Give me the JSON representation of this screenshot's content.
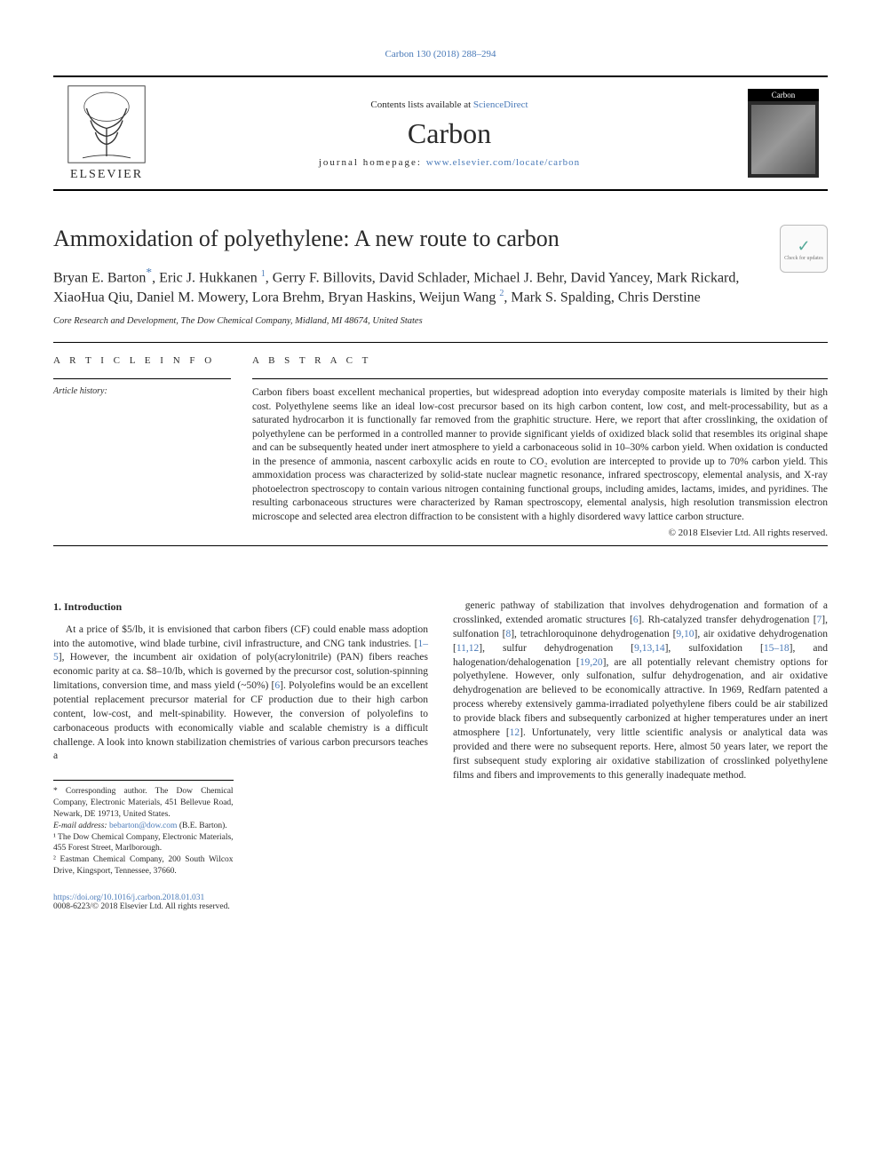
{
  "top_citation": "Carbon 130 (2018) 288–294",
  "masthead": {
    "contents_prefix": "Contents lists available at ",
    "contents_link": "ScienceDirect",
    "journal": "Carbon",
    "homepage_prefix": "journal homepage: ",
    "homepage_link": "www.elsevier.com/locate/carbon",
    "publisher": "ELSEVIER",
    "cover_brand": "Carbon"
  },
  "check_badge": {
    "check": "✓",
    "label": "Check for updates"
  },
  "article": {
    "title": "Ammoxidation of polyethylene: A new route to carbon",
    "authors_html": "Bryan E. Barton<sup class='ast'>*</sup>, Eric J. Hukkanen <sup class='sup'>1</sup>, Gerry F. Billovits, David Schlader, Michael J. Behr, David Yancey, Mark Rickard, XiaoHua Qiu, Daniel M. Mowery, Lora Brehm, Bryan Haskins, Weijun Wang <sup class='sup'>2</sup>, Mark S. Spalding, Chris Derstine",
    "affiliation": "Core Research and Development, The Dow Chemical Company, Midland, MI 48674, United States"
  },
  "info": {
    "heading": "A R T I C L E   I N F O",
    "history_label": "Article history:"
  },
  "abstract": {
    "heading": "A B S T R A C T",
    "text": "Carbon fibers boast excellent mechanical properties, but widespread adoption into everyday composite materials is limited by their high cost. Polyethylene seems like an ideal low-cost precursor based on its high carbon content, low cost, and melt-processability, but as a saturated hydrocarbon it is functionally far removed from the graphitic structure. Here, we report that after crosslinking, the oxidation of polyethylene can be performed in a controlled manner to provide significant yields of oxidized black solid that resembles its original shape and can be subsequently heated under inert atmosphere to yield a carbonaceous solid in 10–30% carbon yield. When oxidation is conducted in the presence of ammonia, nascent carboxylic acids en route to CO₂ evolution are intercepted to provide up to 70% carbon yield. This ammoxidation process was characterized by solid-state nuclear magnetic resonance, infrared spectroscopy, elemental analysis, and X-ray photoelectron spectroscopy to contain various nitrogen containing functional groups, including amides, lactams, imides, and pyridines. The resulting carbonaceous structures were characterized by Raman spectroscopy, elemental analysis, high resolution transmission electron microscope and selected area electron diffraction to be consistent with a highly disordered wavy lattice carbon structure.",
    "copyright": "© 2018 Elsevier Ltd. All rights reserved."
  },
  "intro": {
    "heading": "1.  Introduction",
    "col1_p1": "At a price of $5/lb, it is envisioned that carbon fibers (CF) could enable mass adoption into the automotive, wind blade turbine, civil infrastructure, and CNG tank industries. [1–5], However, the incumbent air oxidation of poly(acrylonitrile) (PAN) fibers reaches economic parity at ca. $8–10/lb, which is governed by the precursor cost, solution-spinning limitations, conversion time, and mass yield (~50%) [6]. Polyolefins would be an excellent potential replacement precursor material for CF production due to their high carbon content, low-cost, and melt-spinability. However, the conversion of polyolefins to carbonaceous products with economically viable and scalable chemistry is a difficult challenge. A look into known stabilization chemistries of various carbon precursors teaches a",
    "col2_p1": "generic pathway of stabilization that involves dehydrogenation and formation of a crosslinked, extended aromatic structures [6]. Rh-catalyzed transfer dehydrogenation [7], sulfonation [8], tetrachloroquinone dehydrogenation [9,10], air oxidative dehydrogenation [11,12], sulfur dehydrogenation [9,13,14], sulfoxidation [15–18], and halogenation/dehalogenation [19,20], are all potentially relevant chemistry options for polyethylene. However, only sulfonation, sulfur dehydrogenation, and air oxidative dehydrogenation are believed to be economically attractive. In 1969, Redfarn patented a process whereby extensively gamma-irradiated polyethylene fibers could be air stabilized to provide black fibers and subsequently carbonized at higher temperatures under an inert atmosphere [12]. Unfortunately, very little scientific analysis or analytical data was provided and there were no subsequent reports. Here, almost 50 years later, we report the first subsequent study exploring air oxidative stabilization of crosslinked polyethylene films and fibers and improvements to this generally inadequate method.",
    "refs_col1": {
      "r1": "1–5",
      "r2": "6"
    },
    "refs_col2": {
      "r6": "6",
      "r7": "7",
      "r8": "8",
      "r910": "9,10",
      "r1112": "11,12",
      "r91314": "9,13,14",
      "r1518": "15–18",
      "r1920": "19,20",
      "r12": "12"
    }
  },
  "footnotes": {
    "corr": "* Corresponding author. The Dow Chemical Company, Electronic Materials, 451 Bellevue Road, Newark, DE 19713, United States.",
    "email_label": "E-mail address: ",
    "email": "bebarton@dow.com",
    "email_tail": " (B.E. Barton).",
    "n1": "¹ The Dow Chemical Company, Electronic Materials, 455 Forest Street, Marlborough.",
    "n2": "² Eastman Chemical Company, 200 South Wilcox Drive, Kingsport, Tennessee, 37660."
  },
  "bottom": {
    "doi": "https://doi.org/10.1016/j.carbon.2018.01.031",
    "issn_line": "0008-6223/© 2018 Elsevier Ltd. All rights reserved."
  },
  "colors": {
    "link": "#4a7ab8",
    "text": "#2a2a2a",
    "rule": "#000000"
  }
}
